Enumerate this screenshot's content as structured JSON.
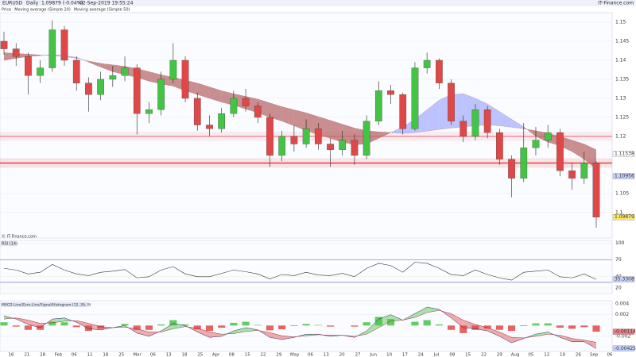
{
  "header": {
    "symbol": "EURUSD",
    "period": "Daily",
    "quote": "1.09879 (-0.04%)",
    "time": "02-Sep-2019 19:55:24",
    "brand": "IT-Finance.com",
    "copyright": "© IT-Finance.com"
  },
  "chart_data": [
    {
      "type": "candlestick",
      "legend": [
        "Price",
        "Moving average (Simple 20)",
        "Moving average (Simple 50)"
      ],
      "open": [
        1.145,
        1.143,
        1.141,
        1.136,
        1.138,
        1.148,
        1.14,
        1.134,
        1.131,
        1.135,
        1.136,
        1.138,
        1.126,
        1.127,
        1.135,
        1.14,
        1.13,
        1.123,
        1.122,
        1.126,
        1.13,
        1.128,
        1.125,
        1.115,
        1.12,
        1.118,
        1.122,
        1.118,
        1.1165,
        1.119,
        1.115,
        1.124,
        1.132,
        1.131,
        1.122,
        1.138,
        1.14,
        1.134,
        1.124,
        1.12,
        1.127,
        1.121,
        1.114,
        1.109,
        1.117,
        1.119,
        1.121,
        1.111,
        1.109,
        1.113
      ],
      "high": [
        1.1475,
        1.1445,
        1.142,
        1.14,
        1.1505,
        1.149,
        1.141,
        1.1355,
        1.137,
        1.1385,
        1.141,
        1.139,
        1.129,
        1.137,
        1.1445,
        1.141,
        1.1315,
        1.1255,
        1.1275,
        1.132,
        1.1325,
        1.129,
        1.126,
        1.1215,
        1.123,
        1.1245,
        1.1235,
        1.1195,
        1.1215,
        1.1205,
        1.1255,
        1.1345,
        1.1335,
        1.1315,
        1.1395,
        1.142,
        1.1405,
        1.135,
        1.1255,
        1.1285,
        1.128,
        1.122,
        1.115,
        1.1235,
        1.1225,
        1.123,
        1.122,
        1.113,
        1.116,
        1.1135
      ],
      "low": [
        1.1415,
        1.1385,
        1.131,
        1.134,
        1.137,
        1.1385,
        1.132,
        1.1265,
        1.1295,
        1.133,
        1.1345,
        1.1205,
        1.1235,
        1.1255,
        1.134,
        1.129,
        1.1215,
        1.12,
        1.121,
        1.125,
        1.1265,
        1.1235,
        1.112,
        1.1135,
        1.116,
        1.117,
        1.1165,
        1.112,
        1.115,
        1.1125,
        1.114,
        1.123,
        1.1285,
        1.1205,
        1.1215,
        1.1365,
        1.1325,
        1.123,
        1.1185,
        1.119,
        1.1195,
        1.1125,
        1.104,
        1.108,
        1.115,
        1.117,
        1.1095,
        1.106,
        1.1075,
        1.096
      ],
      "close": [
        1.143,
        1.141,
        1.136,
        1.138,
        1.148,
        1.14,
        1.134,
        1.131,
        1.135,
        1.136,
        1.138,
        1.126,
        1.127,
        1.135,
        1.14,
        1.13,
        1.123,
        1.122,
        1.126,
        1.13,
        1.128,
        1.125,
        1.115,
        1.12,
        1.118,
        1.122,
        1.118,
        1.1165,
        1.119,
        1.115,
        1.124,
        1.132,
        1.131,
        1.122,
        1.138,
        1.14,
        1.134,
        1.124,
        1.12,
        1.127,
        1.121,
        1.114,
        1.109,
        1.117,
        1.119,
        1.121,
        1.111,
        1.109,
        1.113,
        1.09879
      ],
      "sma20": [
        1.14,
        1.1405,
        1.141,
        1.1412,
        1.1415,
        1.1412,
        1.1408,
        1.1395,
        1.1382,
        1.137,
        1.1362,
        1.1355,
        1.1345,
        1.1338,
        1.1332,
        1.132,
        1.131,
        1.13,
        1.129,
        1.1282,
        1.1272,
        1.1262,
        1.125,
        1.124,
        1.1228,
        1.1215,
        1.1205,
        1.1195,
        1.1185,
        1.1178,
        1.118,
        1.1195,
        1.121,
        1.1225,
        1.1245,
        1.127,
        1.1295,
        1.131,
        1.1312,
        1.13,
        1.1285,
        1.1265,
        1.1245,
        1.1225,
        1.12,
        1.1185,
        1.1175,
        1.116,
        1.114,
        1.1115
      ],
      "sma50": [
        1.142,
        1.1418,
        1.1416,
        1.1414,
        1.1412,
        1.141,
        1.1405,
        1.1398,
        1.1392,
        1.1388,
        1.1384,
        1.1378,
        1.137,
        1.1362,
        1.1355,
        1.1348,
        1.134,
        1.133,
        1.132,
        1.1312,
        1.1305,
        1.1298,
        1.1288,
        1.1278,
        1.127,
        1.1262,
        1.1252,
        1.1242,
        1.1232,
        1.1222,
        1.1215,
        1.1212,
        1.121,
        1.1208,
        1.121,
        1.1214,
        1.1218,
        1.1222,
        1.1225,
        1.1228,
        1.123,
        1.1228,
        1.1224,
        1.122,
        1.1215,
        1.1208,
        1.12,
        1.119,
        1.118,
        1.1165
      ],
      "up_color": "#44c444",
      "down_color": "#e04848",
      "above_color": "#a8b0ff",
      "below_color": "#b86a6a",
      "ylim": [
        1.0933,
        1.1525
      ],
      "yticks": [
        1.15,
        1.145,
        1.14,
        1.135,
        1.13,
        1.125,
        1.12,
        1.105,
        1.1
      ],
      "tags": [
        {
          "value": 1.11538,
          "color": "#ffffff"
        },
        {
          "value": 1.10956,
          "color": "#c8d4ff"
        },
        {
          "value": 1.09879,
          "color": "#ffe866"
        }
      ],
      "hlines": [
        {
          "value": 1.12,
          "color": "#f07a8a"
        },
        {
          "value": 1.113,
          "color": "#e02828"
        }
      ],
      "xlabels": [
        "16",
        "21",
        "28",
        "Feb",
        "06",
        "11",
        "18",
        "25",
        "Mar",
        "06",
        "13",
        "18",
        "25",
        "Apr",
        "08",
        "15",
        "22",
        "29",
        "May",
        "06",
        "13",
        "20",
        "27",
        "Jun",
        "10",
        "17",
        "24",
        "Jul",
        "08",
        "15",
        "22",
        "29",
        "Aug",
        "05",
        "12",
        "19",
        "26",
        "Sep",
        "06"
      ]
    },
    {
      "type": "line",
      "title": "RSI (14)",
      "color": "#333333",
      "values": [
        55,
        52,
        45,
        48,
        62,
        52,
        45,
        42,
        48,
        50,
        53,
        38,
        40,
        52,
        58,
        45,
        40,
        40,
        46,
        52,
        49,
        45,
        36,
        44,
        42,
        48,
        43,
        42,
        46,
        40,
        55,
        64,
        60,
        48,
        66,
        64,
        55,
        44,
        42,
        52,
        44,
        38,
        34,
        48,
        50,
        52,
        40,
        38,
        45,
        35.3308
      ],
      "ylim": [
        10,
        105
      ],
      "yticks": [
        100,
        70,
        40,
        20
      ],
      "levels": [
        70,
        30
      ],
      "level_color": "#7a7ad0"
    },
    {
      "type": "macd",
      "title": "MACD Line/Zero-Line/Signal/Histogram (12, 26, 9)",
      "macd": [
        0.0018,
        0.0012,
        0.0002,
        -0.0004,
        0.0012,
        0.0014,
        0.0006,
        -0.0006,
        -0.0008,
        -0.0004,
        0.0,
        -0.0014,
        -0.002,
        -0.001,
        0.0004,
        0.0,
        -0.0012,
        -0.0022,
        -0.002,
        -0.001,
        -0.0004,
        -0.0008,
        -0.0022,
        -0.0026,
        -0.0022,
        -0.0016,
        -0.0016,
        -0.002,
        -0.0018,
        -0.0022,
        -0.001,
        0.0012,
        0.002,
        0.001,
        0.0022,
        0.0034,
        0.003,
        0.0014,
        -0.0004,
        -0.0006,
        -0.001,
        -0.002,
        -0.0032,
        -0.0024,
        -0.0016,
        -0.0012,
        -0.0022,
        -0.003,
        -0.003,
        -0.00425
      ],
      "signal": [
        0.0012,
        0.0014,
        0.001,
        0.0004,
        0.0005,
        0.0008,
        0.0009,
        0.0004,
        -0.0002,
        -0.0004,
        -0.0003,
        -0.0006,
        -0.0012,
        -0.0012,
        -0.0006,
        -0.0002,
        -0.0005,
        -0.0012,
        -0.0016,
        -0.0015,
        -0.0011,
        -0.0009,
        -0.0013,
        -0.0019,
        -0.0021,
        -0.0019,
        -0.0017,
        -0.0018,
        -0.0018,
        -0.002,
        -0.0016,
        -0.0004,
        0.0008,
        0.001,
        0.0015,
        0.0024,
        0.0028,
        0.0022,
        0.001,
        0.0002,
        -0.0004,
        -0.0012,
        -0.0022,
        -0.0023,
        -0.002,
        -0.0016,
        -0.0018,
        -0.0024,
        -0.0027,
        -0.00311
      ],
      "histogram": [
        0.0006,
        -0.0002,
        -0.0008,
        -0.0008,
        0.0007,
        0.0006,
        -0.0003,
        -0.001,
        -0.0006,
        0.0,
        0.0003,
        -0.0008,
        -0.0008,
        0.0002,
        0.001,
        0.0002,
        -0.0007,
        -0.001,
        -0.0004,
        0.0005,
        0.0007,
        0.0001,
        -0.0009,
        -0.0007,
        -0.0001,
        0.0003,
        0.0001,
        -0.0002,
        0.0,
        -0.0002,
        0.0006,
        0.0016,
        0.0012,
        0.0,
        0.0007,
        0.001,
        0.0002,
        -0.0008,
        -0.0014,
        -0.0008,
        -0.0006,
        -0.0008,
        -0.001,
        -0.0001,
        0.0004,
        0.0004,
        -0.0004,
        -0.0006,
        -0.0003,
        -0.00114
      ],
      "up_color": "#44c444",
      "down_color": "#e04848",
      "ylim": [
        -0.0048,
        0.0046
      ],
      "yticks": [
        0.004,
        0.002,
        -0.002
      ],
      "tags": [
        {
          "series": "histogram",
          "color": "#f08080"
        },
        {
          "series": "macd",
          "color": "#c8d4ff"
        }
      ]
    }
  ]
}
